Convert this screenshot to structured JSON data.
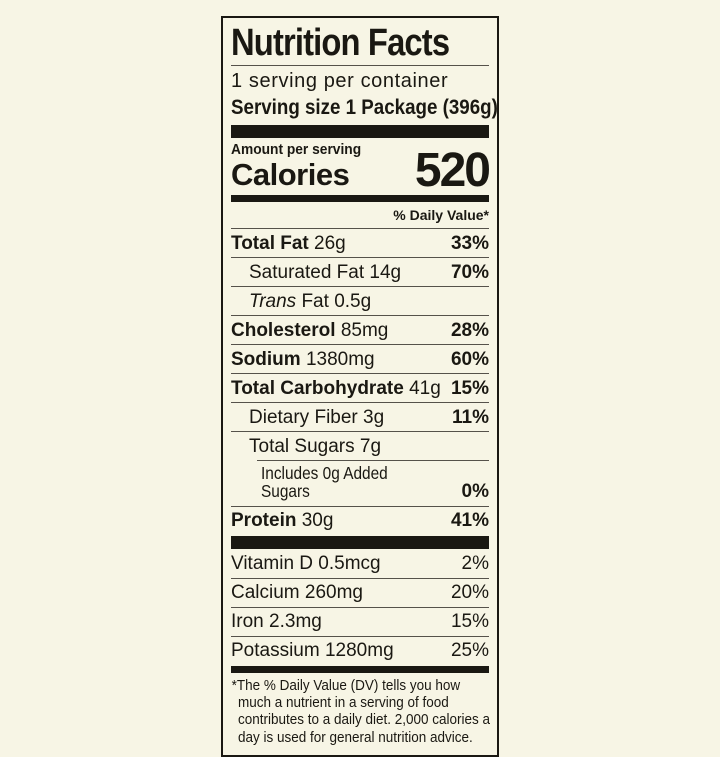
{
  "theme": {
    "background": "#f7f5e5",
    "ink": "#1a1812",
    "hairline": "#55524a"
  },
  "label": {
    "title": "Nutrition Facts",
    "servings_per_container": "1 serving per container",
    "serving_size": "Serving size 1 Package (396g)",
    "amount_per_serving": "Amount per serving",
    "calories_label": "Calories",
    "calories_value": "520",
    "daily_value_header": "% Daily Value*",
    "nutrients": [
      {
        "name": "Total Fat",
        "amount": "26g",
        "dv": "33%"
      },
      {
        "name": "Saturated Fat",
        "amount": "14g",
        "dv": "70%"
      },
      {
        "name_italic": "Trans",
        "name": "Fat",
        "amount": "0.5g",
        "dv": ""
      },
      {
        "name": "Cholesterol",
        "amount": "85mg",
        "dv": "28%"
      },
      {
        "name": "Sodium",
        "amount": "1380mg",
        "dv": "60%"
      },
      {
        "name": "Total Carbohydrate",
        "amount": "41g",
        "dv": "15%"
      },
      {
        "name": "Dietary Fiber",
        "amount": "3g",
        "dv": "11%"
      },
      {
        "name": "Total Sugars",
        "amount": "7g",
        "dv": ""
      },
      {
        "name": "Includes 0g Added Sugars",
        "dv": "0%"
      },
      {
        "name": "Protein",
        "amount": "30g",
        "dv": "41%"
      }
    ],
    "vitamins": [
      {
        "name": "Vitamin D",
        "amount": "0.5mcg",
        "dv": "2%"
      },
      {
        "name": "Calcium",
        "amount": "260mg",
        "dv": "20%"
      },
      {
        "name": "Iron",
        "amount": "2.3mg",
        "dv": "15%"
      },
      {
        "name": "Potassium",
        "amount": "1280mg",
        "dv": "25%"
      }
    ],
    "footnote": "*The % Daily Value (DV) tells you how much a nutrient in a serving of food contributes to a daily diet. 2,000 calories a day is used for general nutrition advice."
  }
}
